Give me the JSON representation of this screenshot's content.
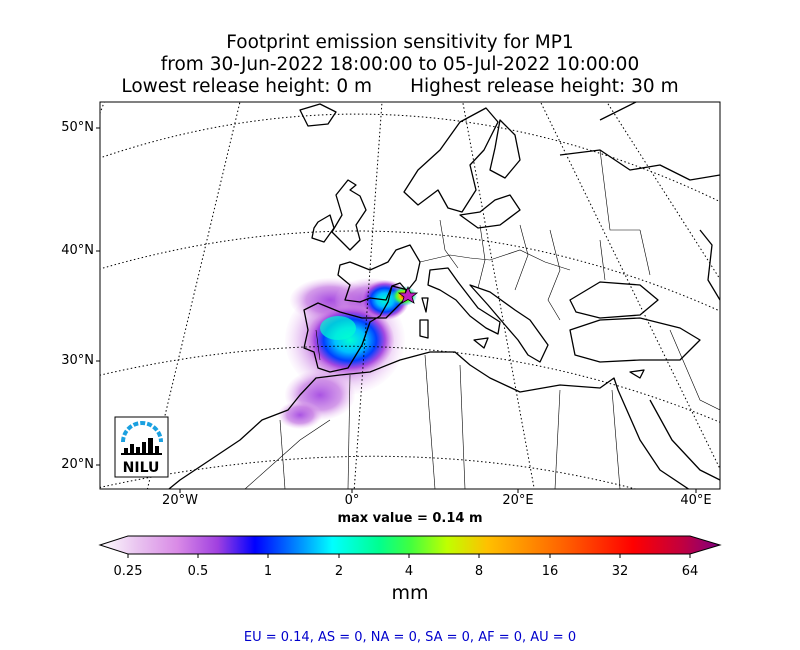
{
  "title": {
    "line1": "Footprint emission sensitivity for MP1",
    "line2": "from 30-Jun-2022 18:00:00 to 05-Jul-2022 10:00:00",
    "line3_left": "Lowest release height: 0 m",
    "line3_right": "Highest release height: 30 m"
  },
  "map": {
    "lat_labels": [
      "50°N",
      "40°N",
      "30°N",
      "20°N"
    ],
    "lon_labels": [
      "20°W",
      "0°",
      "20°E",
      "40°E"
    ],
    "release_marker": "star-icon",
    "logo_text": "NILU"
  },
  "max_value_text": "max value = 0.14 m",
  "colorbar": {
    "ticks": [
      "0.25",
      "0.5",
      "1",
      "2",
      "4",
      "8",
      "16",
      "32",
      "64"
    ],
    "unit": "mm",
    "colors": [
      "#ffffff",
      "#d98ae6",
      "#a040e0",
      "#0000ff",
      "#00c0ff",
      "#00ffd0",
      "#40ff40",
      "#c0ff00",
      "#ffc000",
      "#ff6000",
      "#ff0000",
      "#c00040",
      "#800080"
    ]
  },
  "regions_text": "EU = 0.14,  AS = 0,  NA = 0,  SA = 0,  AF = 0,  AU = 0"
}
